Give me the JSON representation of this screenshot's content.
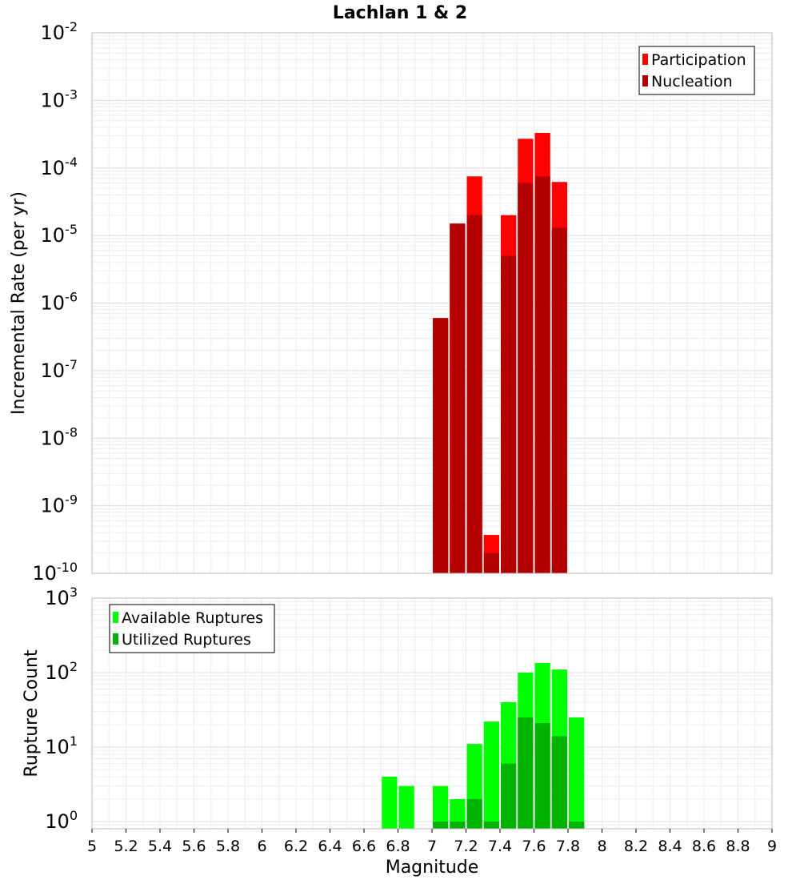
{
  "title": "Lachlan 1 & 2",
  "chart_data": [
    {
      "type": "bar",
      "title": "Lachlan 1 & 2",
      "xlabel": "",
      "ylabel": "Incremental Rate (per yr)",
      "yscale": "log",
      "ylim": [
        1e-10,
        0.01
      ],
      "xlim": [
        5,
        9
      ],
      "y_tick_exponents": [
        "-10",
        "-9",
        "-8",
        "-7",
        "-6",
        "-5",
        "-4",
        "-3",
        "-2"
      ],
      "y_tick_base": "10",
      "grid": true,
      "legend_position": "top-right",
      "legend": [
        {
          "name": "Participation",
          "color": "#ff0000"
        },
        {
          "name": "Nucleation",
          "color": "#b20000"
        }
      ],
      "x": [
        7.05,
        7.15,
        7.25,
        7.35,
        7.45,
        7.55,
        7.65,
        7.75
      ],
      "series": [
        {
          "name": "Participation",
          "color": "#ff0000",
          "values": [
            6e-07,
            1.5e-05,
            7.5e-05,
            3.7e-10,
            2e-05,
            0.00027,
            0.00033,
            6.2e-05
          ]
        },
        {
          "name": "Nucleation",
          "color": "#b20000",
          "values": [
            6e-07,
            1.5e-05,
            2e-05,
            2e-10,
            5e-06,
            6e-05,
            7.5e-05,
            1.3e-05
          ]
        }
      ]
    },
    {
      "type": "bar",
      "title": "",
      "xlabel": "Magnitude",
      "ylabel": "Rupture Count",
      "yscale": "log",
      "ylim": [
        0.8,
        1000
      ],
      "xlim": [
        5,
        9
      ],
      "y_tick_exponents": [
        "0",
        "1",
        "2",
        "3"
      ],
      "y_tick_base": "10",
      "x_ticks": [
        "5",
        "5.2",
        "5.4",
        "5.6",
        "5.8",
        "6",
        "6.2",
        "6.4",
        "6.6",
        "6.8",
        "7",
        "7.2",
        "7.4",
        "7.6",
        "7.8",
        "8",
        "8.2",
        "8.4",
        "8.6",
        "8.8",
        "9"
      ],
      "grid": true,
      "legend_position": "top-left",
      "legend": [
        {
          "name": "Available Ruptures",
          "color": "#00ff00"
        },
        {
          "name": "Utilized Ruptures",
          "color": "#00b200"
        }
      ],
      "x": [
        6.75,
        6.85,
        7.05,
        7.15,
        7.25,
        7.35,
        7.45,
        7.55,
        7.65,
        7.75,
        7.85
      ],
      "series": [
        {
          "name": "Available Ruptures",
          "color": "#00ff00",
          "values": [
            4,
            3,
            3,
            2,
            11,
            22,
            40,
            100,
            135,
            110,
            25
          ]
        },
        {
          "name": "Utilized Ruptures",
          "color": "#00b200",
          "values": [
            0,
            0,
            1,
            1,
            2,
            1,
            6,
            25,
            21,
            14,
            1
          ]
        }
      ]
    }
  ]
}
